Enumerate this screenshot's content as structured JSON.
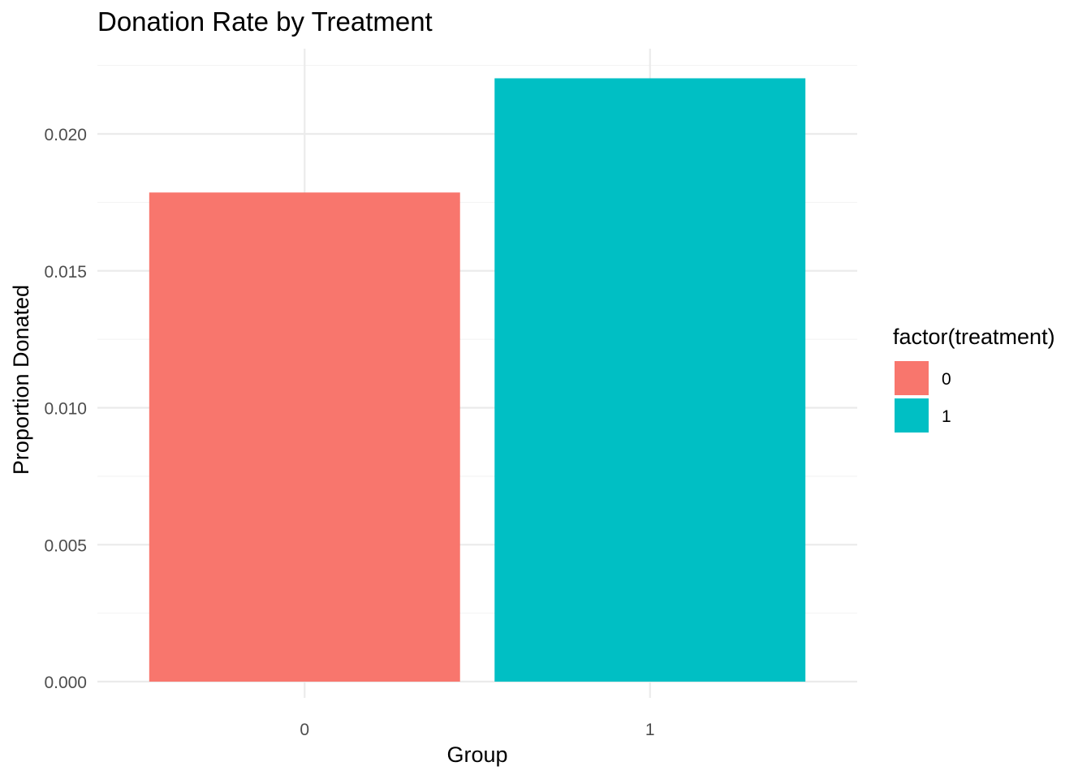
{
  "chart_data": {
    "type": "bar",
    "title": "Donation Rate by Treatment",
    "xlabel": "Group",
    "ylabel": "Proportion Donated",
    "categories": [
      "0",
      "1"
    ],
    "values": [
      0.01786,
      0.02203
    ],
    "colors": [
      "#F8766D",
      "#00BFC4"
    ],
    "ylim": [
      0,
      0.0232
    ],
    "y_ticks": [
      "0.000",
      "0.005",
      "0.010",
      "0.015",
      "0.020"
    ],
    "y_tick_values": [
      0,
      0.005,
      0.01,
      0.015,
      0.02
    ],
    "grid": true,
    "legend": {
      "title": "factor(treatment)",
      "position": "right",
      "entries": [
        {
          "label": "0",
          "color": "#F8766D"
        },
        {
          "label": "1",
          "color": "#00BFC4"
        }
      ]
    }
  }
}
